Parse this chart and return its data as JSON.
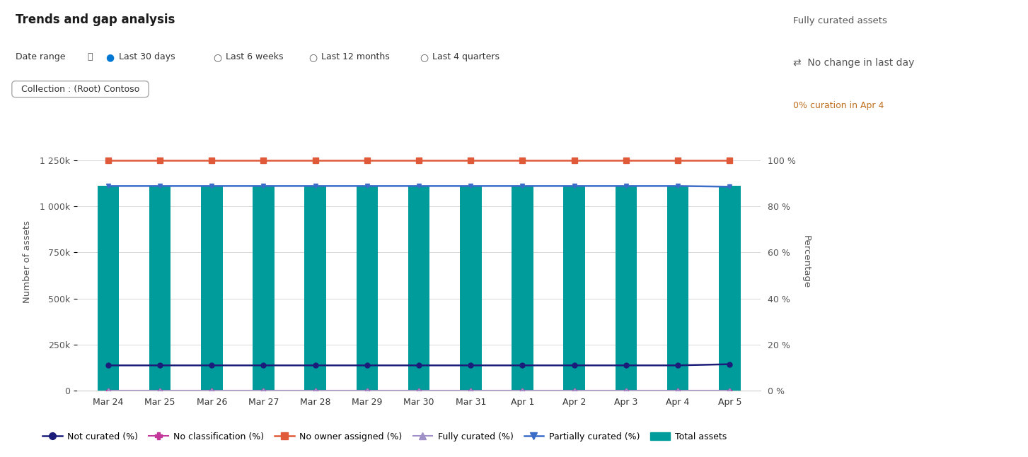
{
  "title": "Trends and gap analysis",
  "dates": [
    "Mar 24",
    "Mar 25",
    "Mar 26",
    "Mar 27",
    "Mar 28",
    "Mar 29",
    "Mar 30",
    "Mar 31",
    "Apr 1",
    "Apr 2",
    "Apr 3",
    "Apr 4",
    "Apr 5"
  ],
  "total_assets": [
    1110000,
    1113000,
    1112000,
    1113000,
    1112000,
    1111000,
    1110000,
    1112000,
    1113000,
    1110000,
    1109000,
    1111000,
    1113000
  ],
  "not_curated_pct": [
    11.0,
    11.0,
    11.0,
    11.0,
    11.0,
    11.0,
    11.0,
    11.0,
    11.0,
    11.0,
    11.0,
    11.0,
    11.5
  ],
  "no_classification_pct": [
    0.02,
    0.02,
    0.02,
    0.02,
    0.02,
    0.02,
    0.02,
    0.02,
    0.02,
    0.02,
    0.02,
    0.02,
    0.02
  ],
  "no_owner_assigned_pct": [
    100,
    100,
    100,
    100,
    100,
    100,
    100,
    100,
    100,
    100,
    100,
    100,
    100
  ],
  "fully_curated_pct": [
    0.05,
    0.05,
    0.05,
    0.05,
    0.05,
    0.05,
    0.05,
    0.05,
    0.05,
    0.05,
    0.05,
    0.05,
    0.05
  ],
  "partially_curated_pct": [
    88.8,
    88.8,
    88.8,
    88.8,
    88.8,
    88.8,
    88.8,
    88.8,
    88.8,
    88.8,
    88.8,
    88.8,
    88.5
  ],
  "bar_color": "#009B9B",
  "not_curated_color": "#1C1C7A",
  "no_classification_color": "#C4379A",
  "no_owner_color": "#E05A3A",
  "fully_curated_color": "#A090C8",
  "partially_curated_color": "#3B6CC8",
  "left_ylim": [
    0,
    1400000
  ],
  "left_yticks": [
    0,
    250000,
    500000,
    750000,
    1000000,
    1250000
  ],
  "right_ylim": [
    0,
    112
  ],
  "right_yticks": [
    0,
    20,
    40,
    60,
    80,
    100
  ],
  "ylabel_left": "Number of assets",
  "ylabel_right": "Percentage",
  "background_color": "#ffffff",
  "grid_color": "#d8d8d8",
  "panel_title": "Fully curated assets",
  "panel_line1": "No change in last day",
  "panel_line2": "0% curation in Apr 4"
}
